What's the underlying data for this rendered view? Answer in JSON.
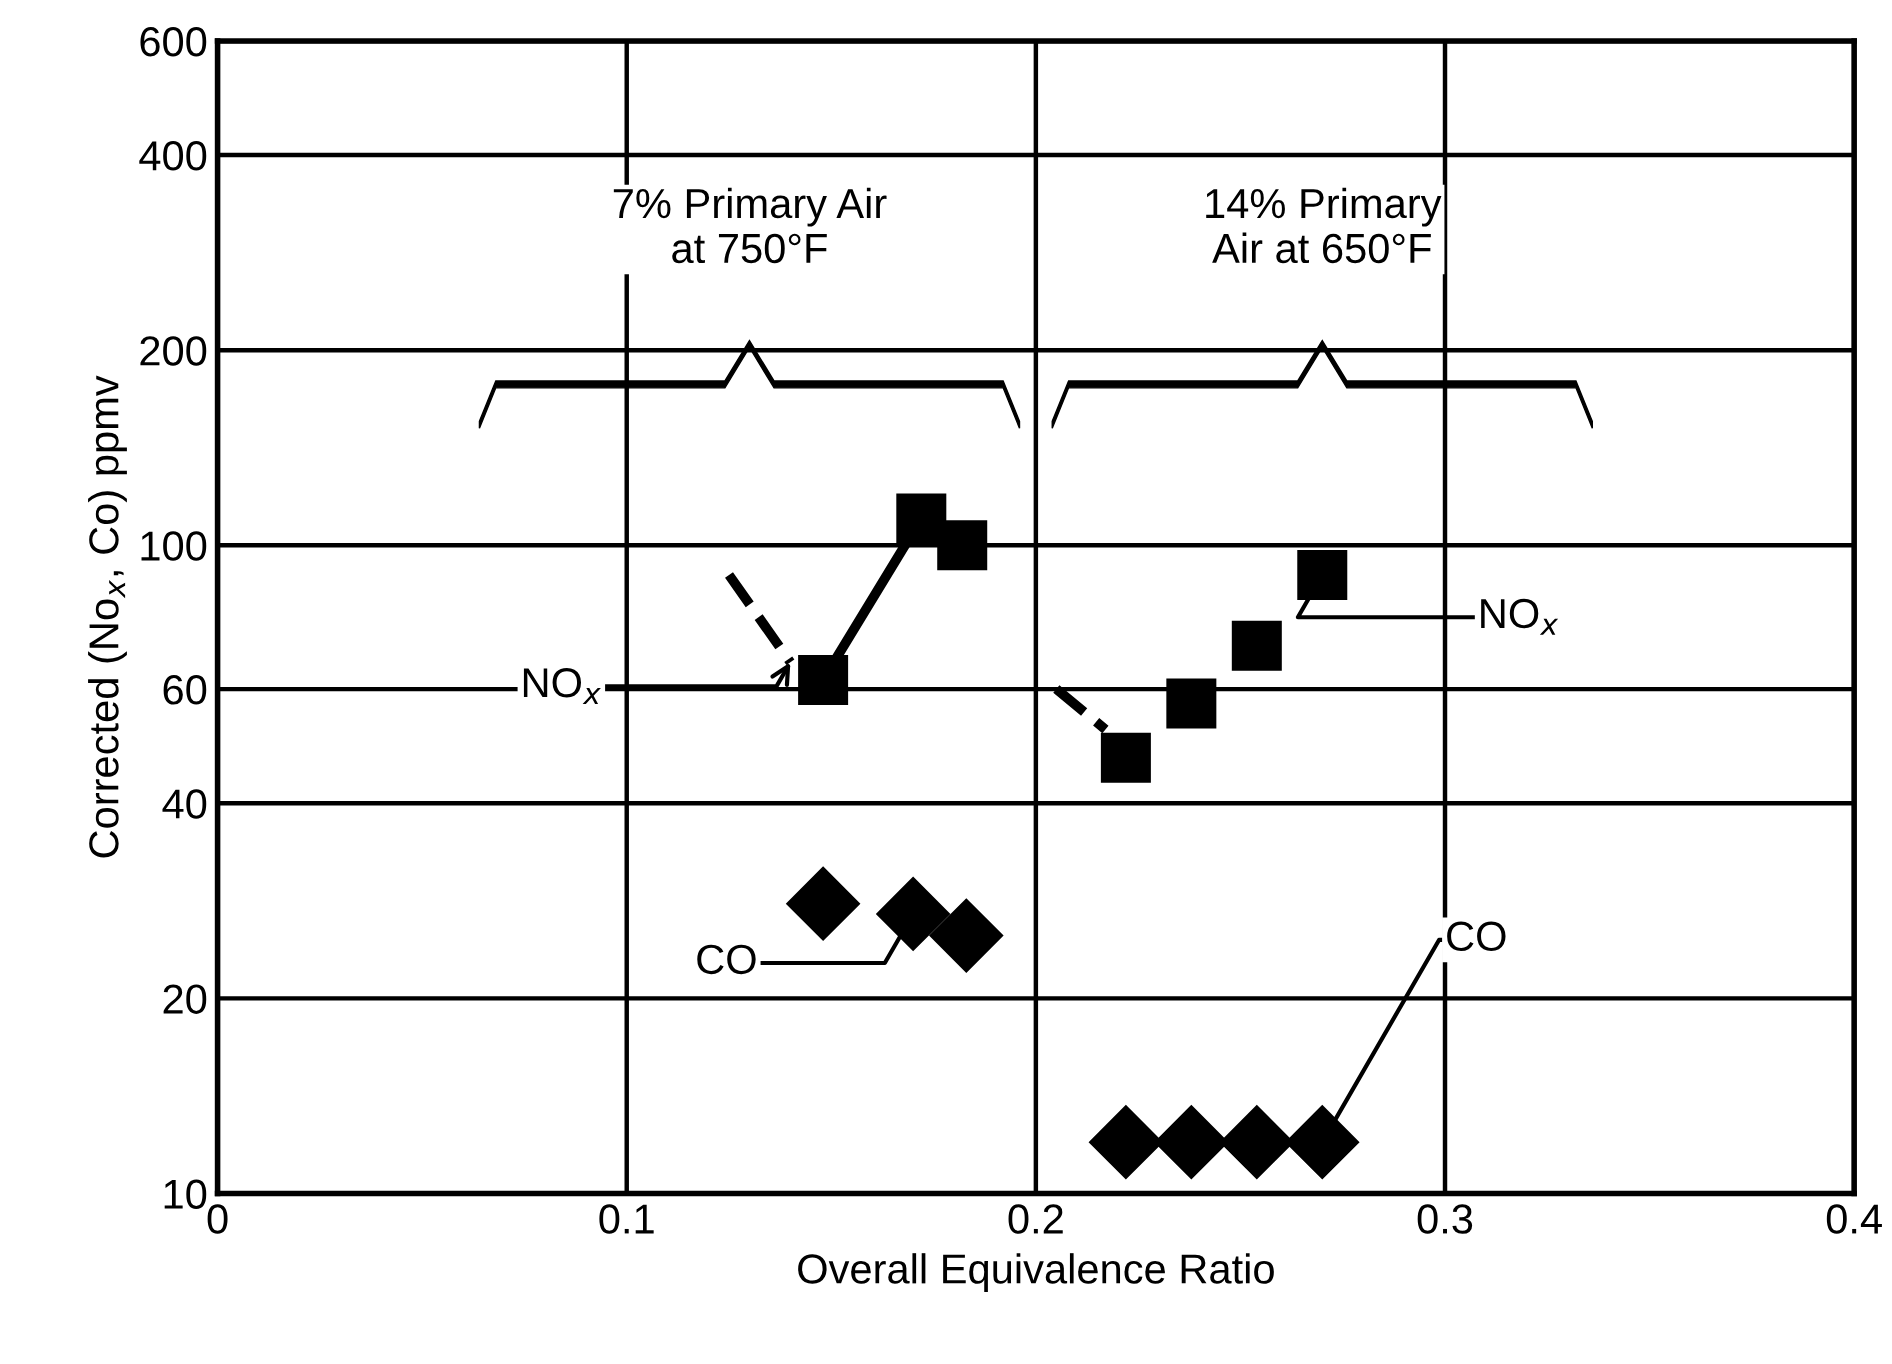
{
  "chart_data": {
    "type": "scatter",
    "xlabel": "Overall Equivalence Ratio",
    "ylabel": "Corrected (No$_{x}$, Co) ppmv",
    "log": "y",
    "xlim": [
      0,
      0.4
    ],
    "xticks": [
      0,
      0.1,
      0.2,
      0.3,
      0.4
    ],
    "ylim": [
      10,
      600
    ],
    "yticks": [
      10,
      20,
      40,
      60,
      100,
      200,
      400,
      600
    ],
    "grid": true,
    "series": [
      {
        "type": "line",
        "color": "#000000",
        "marker": "square",
        "line_style": "solid",
        "x": [
          0.148,
          0.172,
          0.182
        ],
        "values": [
          62,
          110,
          100
        ]
      },
      {
        "type": "line",
        "color": "#000000",
        "marker": "none",
        "line_style": "dashed",
        "x": [
          0.125,
          0.14
        ],
        "values": [
          90,
          66
        ]
      },
      {
        "color": "#000000",
        "marker": "square",
        "x": [
          0.222,
          0.238,
          0.254,
          0.27
        ],
        "values": [
          47,
          57,
          70,
          90
        ]
      },
      {
        "type": "line",
        "color": "#000000",
        "marker": "none",
        "line_style": "dashed",
        "x": [
          0.205,
          0.217
        ],
        "values": [
          60,
          52
        ]
      },
      {
        "color": "#000000",
        "marker": "diamond",
        "x": [
          0.148,
          0.17,
          0.183
        ],
        "values": [
          28,
          27,
          25
        ]
      },
      {
        "color": "#000000",
        "marker": "diamond",
        "x": [
          0.222,
          0.238,
          0.254,
          0.27
        ],
        "values": [
          12,
          12,
          12,
          12
        ]
      }
    ],
    "annotations": [
      "7% Primary Air\nat 750°F",
      "14% Primary\nAir at 650°F",
      {
        "text": "NO$_{x}$",
        "x": 0.14,
        "y": 66
      },
      {
        "text": "NO$_{x}$",
        "x": 0.27,
        "y": 90
      },
      {
        "text": "CO",
        "x": 0.17,
        "y": 27
      },
      {
        "text": "CO",
        "x": 0.27,
        "y": 12
      }
    ]
  }
}
